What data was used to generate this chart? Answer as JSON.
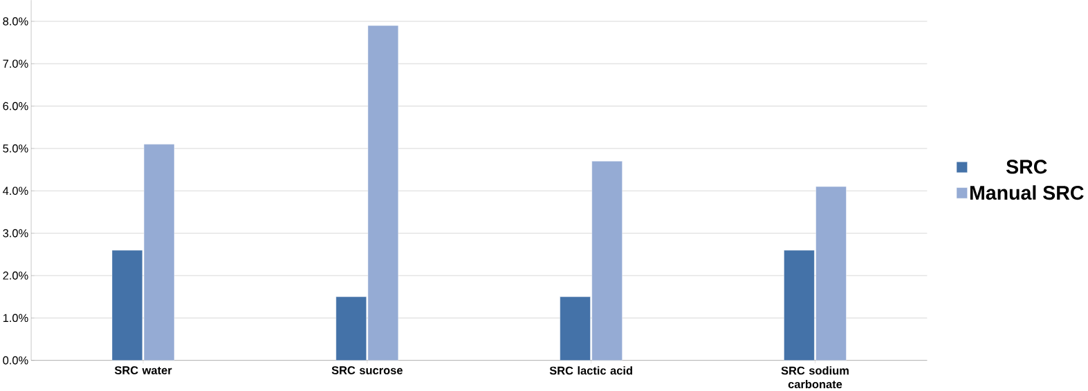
{
  "chart_data": {
    "type": "bar",
    "categories": [
      "SRC water",
      "SRC sucrose",
      "SRC lactic acid",
      "SRC sodium carbonate"
    ],
    "series": [
      {
        "name": "SRC",
        "color": "#4472a8",
        "values": [
          2.6,
          1.5,
          1.5,
          2.6
        ]
      },
      {
        "name": "Manual SRC",
        "color": "#95abd4",
        "values": [
          5.1,
          7.9,
          4.7,
          4.1
        ]
      }
    ],
    "ylim": [
      0,
      8.5
    ],
    "yticks": [
      {
        "value": 0,
        "label": "0.0%"
      },
      {
        "value": 1,
        "label": "1.0%"
      },
      {
        "value": 2,
        "label": "2.0%"
      },
      {
        "value": 3,
        "label": "3.0%"
      },
      {
        "value": 4,
        "label": "4.0%"
      },
      {
        "value": 5,
        "label": "5.0%"
      },
      {
        "value": 6,
        "label": "6.0%"
      },
      {
        "value": 7,
        "label": "7.0%"
      },
      {
        "value": 8,
        "label": "8.0%"
      }
    ],
    "grid": "y",
    "legend": "right"
  }
}
